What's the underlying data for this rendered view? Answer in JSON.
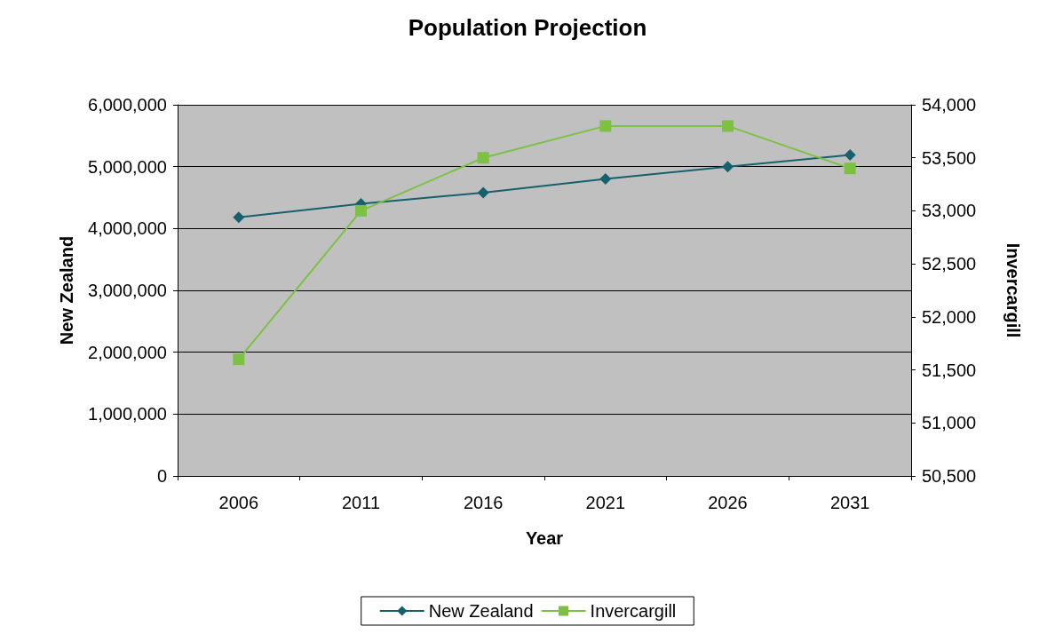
{
  "chart_data": {
    "type": "line",
    "title": "Population Projection",
    "xlabel": "Year",
    "ylabel": "New Zealand",
    "y2label": "Invercargill",
    "categories": [
      "2006",
      "2011",
      "2016",
      "2021",
      "2026",
      "2031"
    ],
    "series": [
      {
        "name": "New Zealand",
        "color": "#17606e",
        "marker": "diamond",
        "values": [
          4180000,
          4400000,
          4580000,
          4800000,
          5000000,
          5190000
        ]
      },
      {
        "name": "Invercargill",
        "color": "#7cc142",
        "marker": "square",
        "axis": "y2",
        "values": [
          51600,
          53000,
          53500,
          53800,
          53800,
          53400
        ]
      }
    ],
    "ylim": [
      0,
      6000000
    ],
    "yticks": [
      0,
      {
        "value": 1000000,
        "label": "1,000,000"
      },
      {
        "value": 2000000,
        "label": "2,000,000"
      },
      {
        "value": 3000000,
        "label": "3,000,000"
      },
      {
        "value": 4000000,
        "label": "4,000,000"
      },
      {
        "value": 5000000,
        "label": "5,000,000"
      },
      {
        "value": 6000000,
        "label": "6,000,000"
      }
    ],
    "y2lim": [
      50500,
      54000
    ],
    "y2ticks": [
      {
        "value": 50500,
        "label": "50,500"
      },
      {
        "value": 51000,
        "label": "51,000"
      },
      {
        "value": 51500,
        "label": "51,500"
      },
      {
        "value": 52000,
        "label": "52,000"
      },
      {
        "value": 52500,
        "label": "52,500"
      },
      {
        "value": 53000,
        "label": "53,000"
      },
      {
        "value": 53500,
        "label": "53,500"
      },
      {
        "value": 54000,
        "label": "54,000"
      }
    ],
    "grid": "y",
    "legend": "bottom"
  }
}
